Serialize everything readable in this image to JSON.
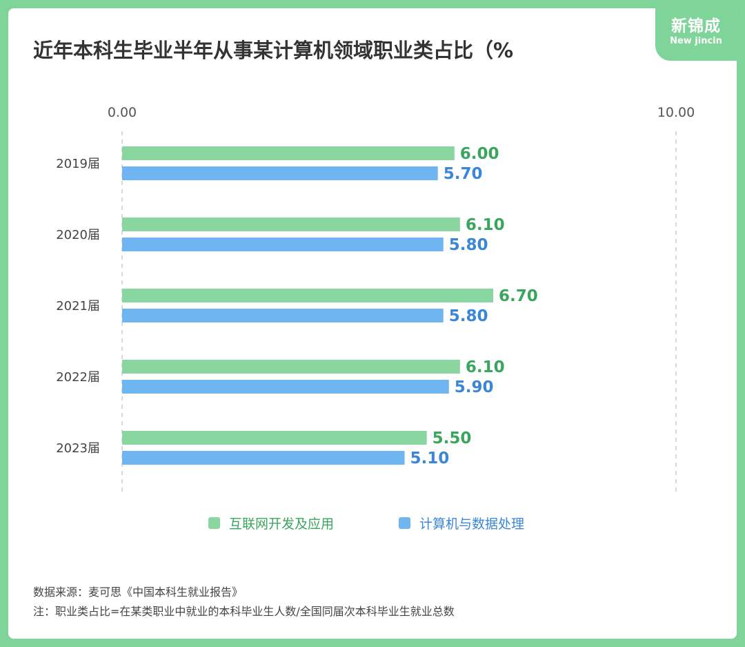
{
  "brand": {
    "cn": "新锦成",
    "en": "New jincin"
  },
  "title": "近年本科生毕业半年从事某计算机领域职业类占比（%",
  "chart_data": {
    "type": "bar",
    "orientation": "horizontal",
    "categories": [
      "2019届",
      "2020届",
      "2021届",
      "2022届",
      "2023届"
    ],
    "series": [
      {
        "name": "互联网开发及应用",
        "color": "#8ad6a0",
        "label_color": "#3aa55d",
        "values": [
          6.0,
          6.1,
          6.7,
          6.1,
          5.5
        ]
      },
      {
        "name": "计算机与数据处理",
        "color": "#6fb5f2",
        "label_color": "#3b86d6",
        "values": [
          5.7,
          5.8,
          5.8,
          5.9,
          5.1
        ]
      }
    ],
    "xlim": [
      0,
      10
    ],
    "ticks": [
      "0.00",
      "10.00"
    ],
    "grid": true,
    "legend": "bottom"
  },
  "footer": {
    "source": "数据来源：麦可思《中国本科生就业报告》",
    "note": "注：职业类占比=在某类职业中就业的本科毕业生人数/全国同届次本科毕业生就业总数"
  }
}
